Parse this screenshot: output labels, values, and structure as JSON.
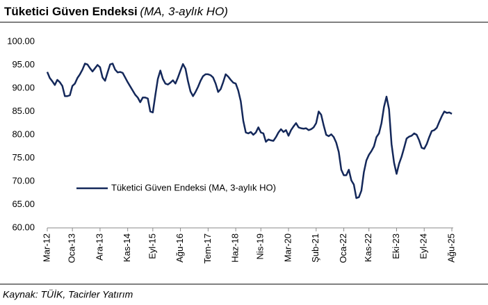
{
  "chart_data": {
    "type": "line",
    "title": "Tüketici Güven Endeksi",
    "subtitle": "(MA, 3-aylık HO)",
    "source": "Kaynak: TÜİK, Tacirler Yatırım",
    "categories": [
      "Mar-12",
      null,
      null,
      null,
      null,
      null,
      null,
      null,
      null,
      null,
      "Oca-13",
      null,
      null,
      null,
      null,
      null,
      null,
      null,
      null,
      null,
      null,
      "Ara-13",
      null,
      null,
      null,
      null,
      null,
      null,
      null,
      null,
      null,
      null,
      "Kas-14",
      null,
      null,
      null,
      null,
      null,
      null,
      null,
      null,
      null,
      "Eyl-15",
      null,
      null,
      null,
      null,
      null,
      null,
      null,
      null,
      null,
      null,
      "Ağu-16",
      null,
      null,
      null,
      null,
      null,
      null,
      null,
      null,
      null,
      null,
      "Tem-17",
      null,
      null,
      null,
      null,
      null,
      null,
      null,
      null,
      null,
      null,
      "Haz-18",
      null,
      null,
      null,
      null,
      null,
      null,
      null,
      null,
      null,
      "Nis-19",
      null,
      null,
      null,
      null,
      null,
      null,
      null,
      null,
      null,
      null,
      "Mar-20",
      null,
      null,
      null,
      null,
      null,
      null,
      null,
      null,
      null,
      null,
      "Şub-21",
      null,
      null,
      null,
      null,
      null,
      null,
      null,
      null,
      null,
      null,
      "Oca-22",
      null,
      null,
      null,
      null,
      null,
      null,
      null,
      null,
      null,
      "Kas-22",
      null,
      null,
      null,
      null,
      null,
      null,
      null,
      null,
      null,
      null,
      "Eki-23",
      null,
      null,
      null,
      null,
      null,
      null,
      null,
      null,
      null,
      null,
      "Eyl-24",
      null,
      null,
      null,
      null,
      null,
      null,
      null,
      null,
      null,
      null,
      "Ağu-25"
    ],
    "series": [
      {
        "name": "Tüketici Güven Endeksi (MA, 3-aylık HO)",
        "color": "#14285a",
        "values": [
          93.5,
          92.2,
          91.5,
          90.7,
          91.8,
          91.3,
          90.5,
          88.3,
          88.3,
          88.5,
          90.5,
          91,
          92.2,
          93,
          94,
          95.3,
          95.1,
          94.3,
          93.6,
          94.3,
          95,
          94.5,
          92.3,
          91.6,
          93.4,
          95.1,
          95.3,
          94,
          93.4,
          93.5,
          93.3,
          92.3,
          91.3,
          90.4,
          89.5,
          88.6,
          88,
          87,
          88,
          88,
          87.8,
          85,
          84.8,
          88.5,
          92,
          93.8,
          92,
          91,
          90.8,
          91.2,
          91.7,
          91,
          92.3,
          93.8,
          95.2,
          94.2,
          91.5,
          89.3,
          88.3,
          89.2,
          90.3,
          91.6,
          92.6,
          93,
          93,
          92.8,
          92.3,
          91,
          89.2,
          89.8,
          91.3,
          93,
          92.5,
          91.8,
          91.2,
          91,
          89.5,
          87.2,
          83,
          80.5,
          80.3,
          80.6,
          80,
          80.5,
          81.6,
          80.5,
          80.3,
          78.5,
          79,
          78.8,
          78.7,
          79.5,
          80.5,
          81.2,
          80.6,
          81,
          79.8,
          81,
          81.8,
          82.5,
          81.6,
          81.4,
          81.3,
          81.4,
          81,
          81.2,
          81.6,
          82.5,
          85,
          84.3,
          82,
          80,
          79.7,
          80.1,
          79.5,
          78.3,
          76.3,
          72.5,
          71.3,
          71.3,
          72.5,
          70.2,
          69.3,
          66.4,
          66.6,
          68,
          72,
          74.5,
          75.7,
          76.5,
          77.5,
          79.5,
          80.3,
          82.5,
          86,
          88.2,
          85.5,
          78,
          74,
          71.6,
          73.8,
          75.3,
          77.2,
          79.2,
          79.6,
          79.8,
          80.3,
          80,
          78.8,
          77.2,
          77,
          78,
          79.5,
          80.8,
          81,
          81.5,
          82.8,
          84,
          85,
          84.7,
          84.8,
          84.5
        ]
      }
    ],
    "ylim": [
      60,
      100
    ],
    "yticks": [
      {
        "value": 60,
        "label": "60.00"
      },
      {
        "value": 65,
        "label": "65.00"
      },
      {
        "value": 70,
        "label": "70.00"
      },
      {
        "value": 75,
        "label": "75.00"
      },
      {
        "value": 80,
        "label": "80.00"
      },
      {
        "value": 85,
        "label": "85.00"
      },
      {
        "value": 90,
        "label": "90.00"
      },
      {
        "value": 95,
        "label": "95.00"
      },
      {
        "value": 100,
        "label": "100.00"
      }
    ],
    "grid": false,
    "legend": "lower-left"
  }
}
